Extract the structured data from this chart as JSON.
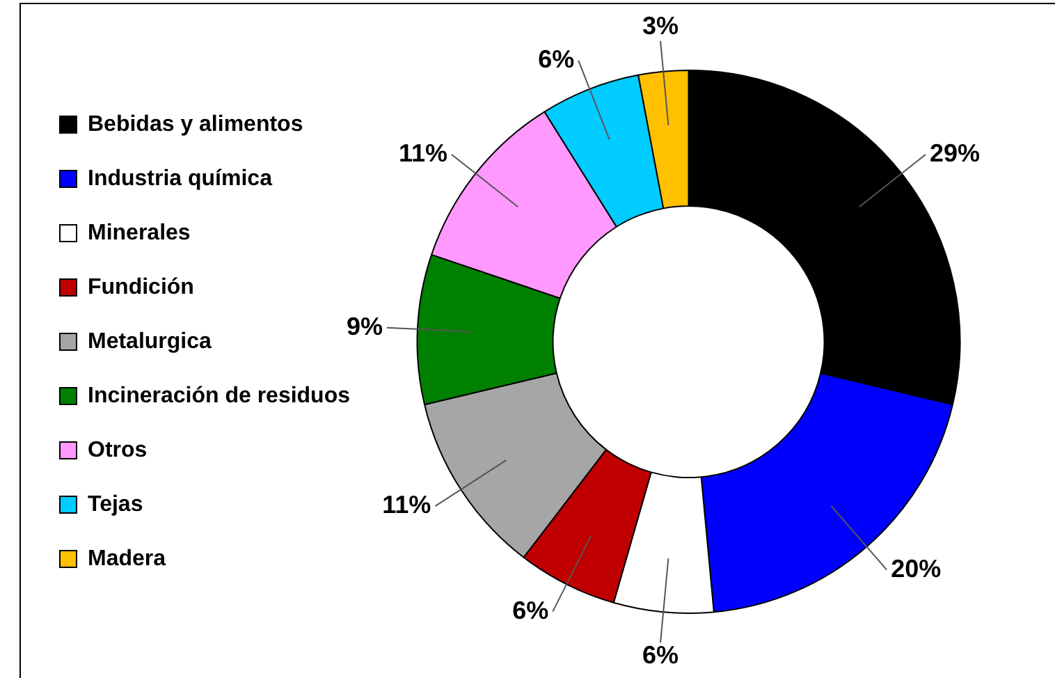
{
  "chart_data": {
    "type": "donut",
    "categories": [
      "Bebidas y alimentos",
      "Industria química",
      "Minerales",
      "Fundición",
      "Metalurgica",
      "Incineración de residuos",
      "Otros",
      "Tejas",
      "Madera"
    ],
    "values": [
      29,
      20,
      6,
      6,
      11,
      9,
      11,
      6,
      3
    ],
    "value_labels": [
      "29%",
      "20%",
      "6%",
      "6%",
      "11%",
      "9%",
      "11%",
      "6%",
      "3%"
    ],
    "colors": [
      "#000000",
      "#0000ff",
      "#ffffff",
      "#c00000",
      "#a6a6a6",
      "#008000",
      "#ff99ff",
      "#00ccff",
      "#ffc000"
    ],
    "legend": "left"
  }
}
